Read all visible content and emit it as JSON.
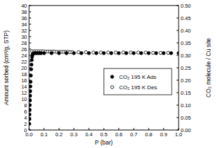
{
  "chart_data": {
    "type": "scatter",
    "xlabel": "P (bar)",
    "ylabel": "Amount sorbed (cm³/g, STP)",
    "y2label": "CO₂ molecule / Cu site",
    "xlim": [
      0,
      1.0
    ],
    "xticks": [
      {
        "value": 0,
        "label": "0.0"
      },
      {
        "value": 0.1,
        "label": "0.1"
      },
      {
        "value": 0.2,
        "label": "0.2"
      },
      {
        "value": 0.3,
        "label": "0.3"
      },
      {
        "value": 0.4,
        "label": "0.4"
      },
      {
        "value": 0.5,
        "label": "0.5"
      },
      {
        "value": 0.6,
        "label": "0.6"
      },
      {
        "value": 0.7,
        "label": "0.7"
      },
      {
        "value": 0.8,
        "label": "0.8"
      },
      {
        "value": 0.9,
        "label": "0.9"
      },
      {
        "value": 1.0,
        "label": "1.0"
      }
    ],
    "ylim": [
      0,
      40
    ],
    "yticks": [
      0,
      2,
      4,
      6,
      8,
      10,
      12,
      14,
      16,
      18,
      20,
      22,
      24,
      26,
      28,
      30,
      32,
      34,
      36,
      38,
      40
    ],
    "y2lim": [
      0,
      0.5
    ],
    "y2ticks": [
      {
        "value": 0,
        "label": "0.00"
      },
      {
        "value": 0.05,
        "label": "0.05"
      },
      {
        "value": 0.1,
        "label": "0.10"
      },
      {
        "value": 0.15,
        "label": "0.15"
      },
      {
        "value": 0.2,
        "label": "0.20"
      },
      {
        "value": 0.25,
        "label": "0.25"
      },
      {
        "value": 0.3,
        "label": "0.30"
      },
      {
        "value": 0.35,
        "label": "0.35"
      },
      {
        "value": 0.4,
        "label": "0.40"
      },
      {
        "value": 0.45,
        "label": "0.45"
      },
      {
        "value": 0.5,
        "label": "0.50"
      }
    ],
    "legend": "right",
    "series": [
      {
        "name": "CO₂ 195 K Ads",
        "color": "#000000",
        "marker": "filled-circle",
        "x": [
          0.001,
          0.002,
          0.003,
          0.004,
          0.005,
          0.006,
          0.007,
          0.008,
          0.009,
          0.01,
          0.012,
          0.014,
          0.016,
          0.018,
          0.02,
          0.023,
          0.026,
          0.03,
          0.035,
          0.04,
          0.05,
          0.06,
          0.07,
          0.08,
          0.1,
          0.15,
          0.2,
          0.25,
          0.3,
          0.35,
          0.4,
          0.45,
          0.5,
          0.55,
          0.6,
          0.65,
          0.7,
          0.75,
          0.8,
          0.85,
          0.9,
          0.95,
          1.0
        ],
        "values": [
          2,
          3.5,
          5,
          6.5,
          8,
          9.5,
          11,
          12.5,
          14,
          15.5,
          17.5,
          19.5,
          21,
          22.5,
          23.5,
          24.2,
          24.5,
          24.6,
          24.7,
          24.7,
          24.7,
          24.7,
          24.7,
          24.7,
          24.7,
          24.7,
          24.7,
          24.7,
          24.7,
          24.7,
          24.7,
          24.7,
          24.7,
          24.7,
          24.7,
          24.7,
          24.7,
          24.7,
          24.7,
          24.7,
          24.7,
          24.7,
          24.7
        ]
      },
      {
        "name": "CO₂ 195 K Des",
        "color": "#000000",
        "marker": "open-circle",
        "x": [
          0.02,
          0.035,
          0.05,
          0.065,
          0.08,
          0.095,
          0.11,
          0.125,
          0.14,
          0.155,
          0.17,
          0.185,
          0.2,
          0.215,
          0.23,
          0.245,
          0.26,
          0.275,
          0.29,
          0.33,
          0.38,
          0.43,
          0.48,
          0.53,
          0.58,
          0.63,
          0.68,
          0.73,
          0.78,
          0.83,
          0.88,
          0.93
        ],
        "values": [
          25.3,
          25.3,
          25.3,
          25.3,
          25.3,
          25.3,
          25.2,
          25.2,
          25.2,
          25.2,
          25.2,
          25.1,
          25.1,
          25.1,
          25.1,
          25.1,
          25.1,
          25.0,
          25.0,
          25.0,
          25.0,
          24.9,
          24.9,
          24.9,
          24.9,
          24.9,
          24.9,
          24.9,
          24.9,
          24.8,
          24.8,
          24.8
        ]
      }
    ]
  }
}
